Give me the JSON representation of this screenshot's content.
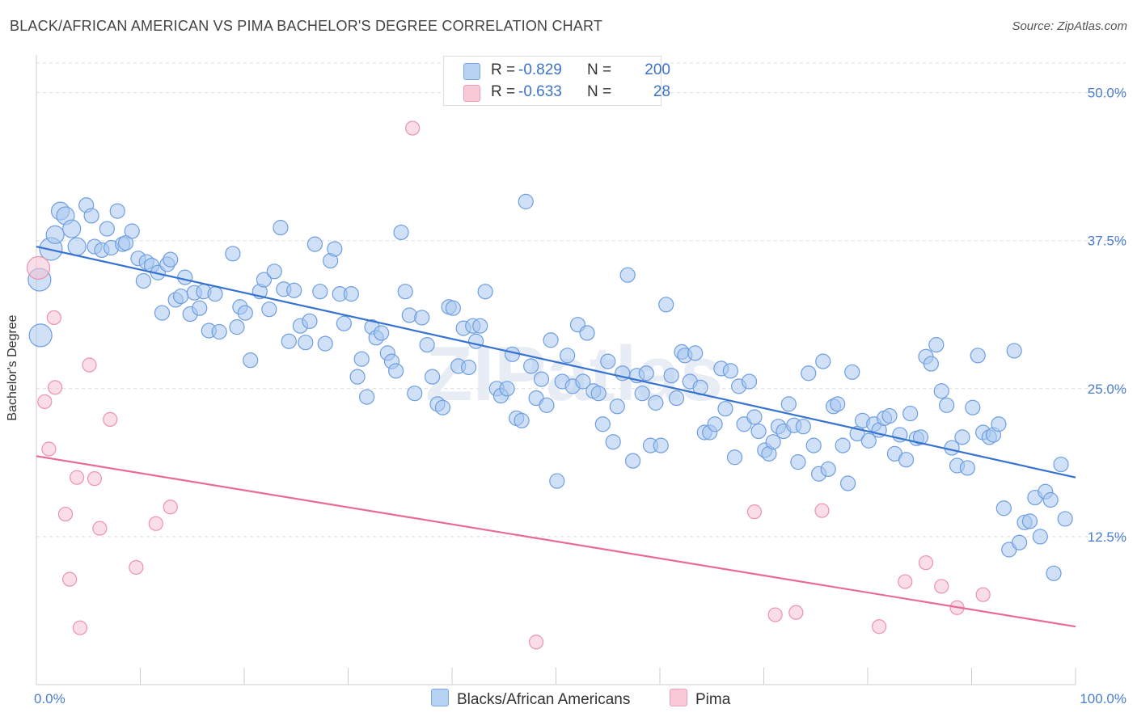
{
  "title": "BLACK/AFRICAN AMERICAN VS PIMA BACHELOR'S DEGREE CORRELATION CHART",
  "source": "Source: ZipAtlas.com",
  "colors": {
    "blue_fill": "#a9c8f0",
    "blue_stroke": "#6e9ee0",
    "blue_line": "#3672d0",
    "pink_fill": "#f6c3d3",
    "pink_stroke": "#ec92ae",
    "pink_line": "#e86b95",
    "tick_text": "#4a7cd0",
    "grid": "#dcdcdc"
  },
  "legend": {
    "rows": [
      {
        "r_label": "R =",
        "r_value": "-0.829",
        "n_label": "N =",
        "n_value": "200"
      },
      {
        "r_label": "R =",
        "r_value": "-0.633",
        "n_label": "N =",
        "n_value": "28"
      }
    ]
  },
  "bottom_legend": {
    "items": [
      {
        "label": "Blacks/African Americans"
      },
      {
        "label": "Pima"
      }
    ]
  },
  "watermark": "ZIPatlas",
  "chart_data": {
    "type": "scatter",
    "title": "BLACK/AFRICAN AMERICAN VS PIMA BACHELOR'S DEGREE CORRELATION CHART",
    "xlabel": "",
    "ylabel": "Bachelor's Degree",
    "xlim": [
      0,
      100
    ],
    "ylim": [
      0,
      52.5
    ],
    "x_tick_labels": [
      {
        "value": 0,
        "label": "0.0%"
      },
      {
        "value": 100,
        "label": "100.0%"
      }
    ],
    "y_ticks": [
      {
        "value": 12.5,
        "label": "12.5%"
      },
      {
        "value": 25,
        "label": "25.0%"
      },
      {
        "value": 37.5,
        "label": "37.5%"
      },
      {
        "value": 50,
        "label": "50.0%"
      }
    ],
    "series": [
      {
        "name": "Blacks/African Americans",
        "R": -0.829,
        "N": 200,
        "trend": {
          "x": [
            0,
            100
          ],
          "y": [
            37.0,
            17.5
          ]
        },
        "points": [
          [
            0.3,
            34.2
          ],
          [
            0.4,
            29.5
          ],
          [
            1.4,
            36.8
          ],
          [
            1.8,
            38.0
          ],
          [
            2.3,
            40.0
          ],
          [
            2.8,
            39.6
          ],
          [
            3.4,
            38.5
          ],
          [
            3.9,
            37.0
          ],
          [
            4.8,
            40.5
          ],
          [
            5.3,
            39.6
          ],
          [
            5.6,
            37.0
          ],
          [
            6.3,
            36.7
          ],
          [
            6.8,
            38.5
          ],
          [
            7.2,
            36.9
          ],
          [
            7.8,
            40.0
          ],
          [
            8.3,
            37.2
          ],
          [
            8.6,
            37.3
          ],
          [
            9.2,
            38.3
          ],
          [
            9.8,
            36.0
          ],
          [
            10.3,
            34.1
          ],
          [
            10.6,
            35.7
          ],
          [
            11.1,
            35.4
          ],
          [
            11.7,
            34.8
          ],
          [
            12.1,
            31.4
          ],
          [
            12.6,
            35.5
          ],
          [
            12.9,
            35.9
          ],
          [
            13.4,
            32.5
          ],
          [
            13.9,
            32.8
          ],
          [
            14.3,
            34.4
          ],
          [
            14.8,
            31.3
          ],
          [
            15.2,
            33.1
          ],
          [
            15.7,
            31.8
          ],
          [
            16.1,
            33.2
          ],
          [
            16.6,
            29.9
          ],
          [
            17.2,
            33.0
          ],
          [
            17.6,
            29.8
          ],
          [
            18.9,
            36.4
          ],
          [
            19.3,
            30.2
          ],
          [
            19.6,
            31.9
          ],
          [
            20.1,
            31.4
          ],
          [
            20.6,
            27.4
          ],
          [
            21.5,
            33.2
          ],
          [
            21.9,
            34.2
          ],
          [
            22.4,
            31.7
          ],
          [
            22.9,
            34.9
          ],
          [
            23.5,
            38.6
          ],
          [
            23.8,
            33.4
          ],
          [
            24.3,
            29.0
          ],
          [
            24.8,
            33.3
          ],
          [
            25.4,
            30.3
          ],
          [
            25.9,
            28.9
          ],
          [
            26.3,
            30.7
          ],
          [
            26.8,
            37.2
          ],
          [
            27.3,
            33.2
          ],
          [
            27.8,
            28.8
          ],
          [
            28.3,
            35.8
          ],
          [
            28.7,
            36.8
          ],
          [
            29.2,
            33.0
          ],
          [
            29.6,
            30.5
          ],
          [
            30.3,
            33.0
          ],
          [
            30.9,
            26.0
          ],
          [
            31.3,
            27.5
          ],
          [
            31.8,
            24.3
          ],
          [
            32.3,
            30.2
          ],
          [
            32.7,
            29.3
          ],
          [
            33.2,
            29.7
          ],
          [
            33.8,
            28.0
          ],
          [
            34.2,
            27.3
          ],
          [
            34.6,
            26.5
          ],
          [
            35.1,
            38.2
          ],
          [
            35.5,
            33.2
          ],
          [
            35.9,
            31.2
          ],
          [
            36.4,
            24.6
          ],
          [
            37.1,
            31.0
          ],
          [
            37.6,
            28.7
          ],
          [
            38.1,
            26.0
          ],
          [
            38.6,
            23.7
          ],
          [
            39.1,
            23.4
          ],
          [
            39.7,
            31.9
          ],
          [
            40.1,
            31.8
          ],
          [
            40.6,
            26.9
          ],
          [
            41.1,
            30.1
          ],
          [
            41.6,
            26.8
          ],
          [
            42.0,
            30.3
          ],
          [
            42.3,
            29.0
          ],
          [
            42.7,
            30.3
          ],
          [
            43.2,
            33.2
          ],
          [
            44.3,
            25.0
          ],
          [
            44.7,
            24.4
          ],
          [
            45.3,
            25.0
          ],
          [
            45.8,
            27.9
          ],
          [
            46.2,
            22.5
          ],
          [
            46.7,
            22.3
          ],
          [
            47.1,
            40.8
          ],
          [
            47.6,
            26.9
          ],
          [
            48.1,
            24.2
          ],
          [
            48.6,
            25.8
          ],
          [
            49.1,
            23.6
          ],
          [
            49.5,
            29.1
          ],
          [
            50.1,
            17.2
          ],
          [
            50.6,
            25.6
          ],
          [
            51.1,
            27.8
          ],
          [
            51.6,
            25.2
          ],
          [
            52.1,
            30.4
          ],
          [
            52.6,
            25.6
          ],
          [
            53.0,
            29.7
          ],
          [
            53.6,
            24.8
          ],
          [
            54.1,
            24.6
          ],
          [
            54.5,
            22.0
          ],
          [
            55.0,
            27.3
          ],
          [
            55.5,
            20.5
          ],
          [
            55.9,
            23.5
          ],
          [
            56.4,
            26.3
          ],
          [
            56.9,
            34.6
          ],
          [
            57.4,
            18.9
          ],
          [
            57.8,
            26.1
          ],
          [
            58.3,
            24.6
          ],
          [
            58.7,
            26.3
          ],
          [
            59.1,
            20.2
          ],
          [
            59.6,
            23.8
          ],
          [
            60.1,
            20.2
          ],
          [
            60.6,
            32.1
          ],
          [
            61.1,
            26.1
          ],
          [
            61.6,
            24.2
          ],
          [
            62.1,
            28.1
          ],
          [
            62.4,
            27.8
          ],
          [
            62.9,
            25.6
          ],
          [
            63.4,
            28.0
          ],
          [
            63.9,
            25.1
          ],
          [
            64.3,
            21.3
          ],
          [
            64.8,
            21.3
          ],
          [
            65.3,
            22.0
          ],
          [
            65.9,
            26.7
          ],
          [
            66.3,
            23.3
          ],
          [
            66.8,
            26.5
          ],
          [
            67.2,
            19.2
          ],
          [
            67.6,
            25.2
          ],
          [
            68.1,
            22.0
          ],
          [
            68.6,
            25.6
          ],
          [
            69.1,
            22.6
          ],
          [
            69.5,
            21.4
          ],
          [
            70.1,
            19.8
          ],
          [
            70.5,
            19.5
          ],
          [
            70.9,
            20.5
          ],
          [
            71.4,
            21.8
          ],
          [
            71.9,
            21.4
          ],
          [
            72.4,
            23.7
          ],
          [
            72.9,
            21.9
          ],
          [
            73.3,
            18.8
          ],
          [
            73.8,
            21.8
          ],
          [
            74.3,
            26.3
          ],
          [
            74.8,
            20.2
          ],
          [
            75.3,
            17.8
          ],
          [
            75.7,
            27.3
          ],
          [
            76.2,
            18.2
          ],
          [
            76.7,
            23.5
          ],
          [
            77.1,
            23.7
          ],
          [
            77.6,
            20.2
          ],
          [
            78.1,
            17.0
          ],
          [
            78.5,
            26.4
          ],
          [
            79.0,
            21.2
          ],
          [
            79.5,
            22.3
          ],
          [
            80.1,
            20.6
          ],
          [
            80.6,
            22.0
          ],
          [
            81.1,
            21.5
          ],
          [
            81.6,
            22.5
          ],
          [
            82.1,
            22.7
          ],
          [
            82.6,
            19.5
          ],
          [
            83.1,
            21.1
          ],
          [
            83.7,
            19.0
          ],
          [
            84.1,
            22.9
          ],
          [
            84.7,
            20.8
          ],
          [
            85.1,
            20.9
          ],
          [
            85.6,
            27.7
          ],
          [
            86.1,
            27.1
          ],
          [
            86.6,
            28.7
          ],
          [
            87.1,
            24.8
          ],
          [
            87.6,
            23.6
          ],
          [
            88.1,
            20.0
          ],
          [
            88.6,
            18.5
          ],
          [
            89.1,
            20.9
          ],
          [
            89.6,
            18.3
          ],
          [
            90.1,
            23.4
          ],
          [
            90.6,
            27.8
          ],
          [
            91.1,
            21.3
          ],
          [
            91.7,
            20.9
          ],
          [
            92.1,
            21.1
          ],
          [
            92.6,
            22.0
          ],
          [
            93.1,
            14.9
          ],
          [
            93.6,
            11.4
          ],
          [
            94.1,
            28.2
          ],
          [
            94.6,
            12.0
          ],
          [
            95.1,
            13.7
          ],
          [
            95.6,
            13.8
          ],
          [
            96.1,
            15.8
          ],
          [
            96.6,
            12.5
          ],
          [
            97.1,
            16.3
          ],
          [
            97.6,
            15.6
          ],
          [
            97.9,
            9.4
          ],
          [
            98.6,
            18.6
          ],
          [
            99.0,
            14.0
          ]
        ]
      },
      {
        "name": "Pima",
        "R": -0.633,
        "N": 28,
        "trend": {
          "x": [
            0,
            100
          ],
          "y": [
            19.3,
            4.9
          ]
        },
        "points": [
          [
            0.2,
            35.2
          ],
          [
            1.7,
            31.0
          ],
          [
            0.8,
            23.9
          ],
          [
            1.2,
            19.9
          ],
          [
            1.8,
            25.1
          ],
          [
            2.8,
            14.4
          ],
          [
            3.2,
            8.9
          ],
          [
            3.9,
            17.5
          ],
          [
            4.2,
            4.8
          ],
          [
            5.1,
            27.0
          ],
          [
            5.6,
            17.4
          ],
          [
            6.1,
            13.2
          ],
          [
            7.1,
            22.4
          ],
          [
            9.6,
            9.9
          ],
          [
            11.5,
            13.6
          ],
          [
            12.9,
            15.0
          ],
          [
            36.2,
            47.0
          ],
          [
            48.1,
            3.6
          ],
          [
            69.1,
            14.6
          ],
          [
            71.1,
            5.9
          ],
          [
            73.1,
            6.1
          ],
          [
            75.6,
            14.7
          ],
          [
            81.1,
            4.9
          ],
          [
            83.6,
            8.7
          ],
          [
            85.6,
            10.3
          ],
          [
            87.1,
            8.3
          ],
          [
            88.6,
            6.5
          ],
          [
            91.1,
            7.6
          ]
        ]
      }
    ]
  }
}
